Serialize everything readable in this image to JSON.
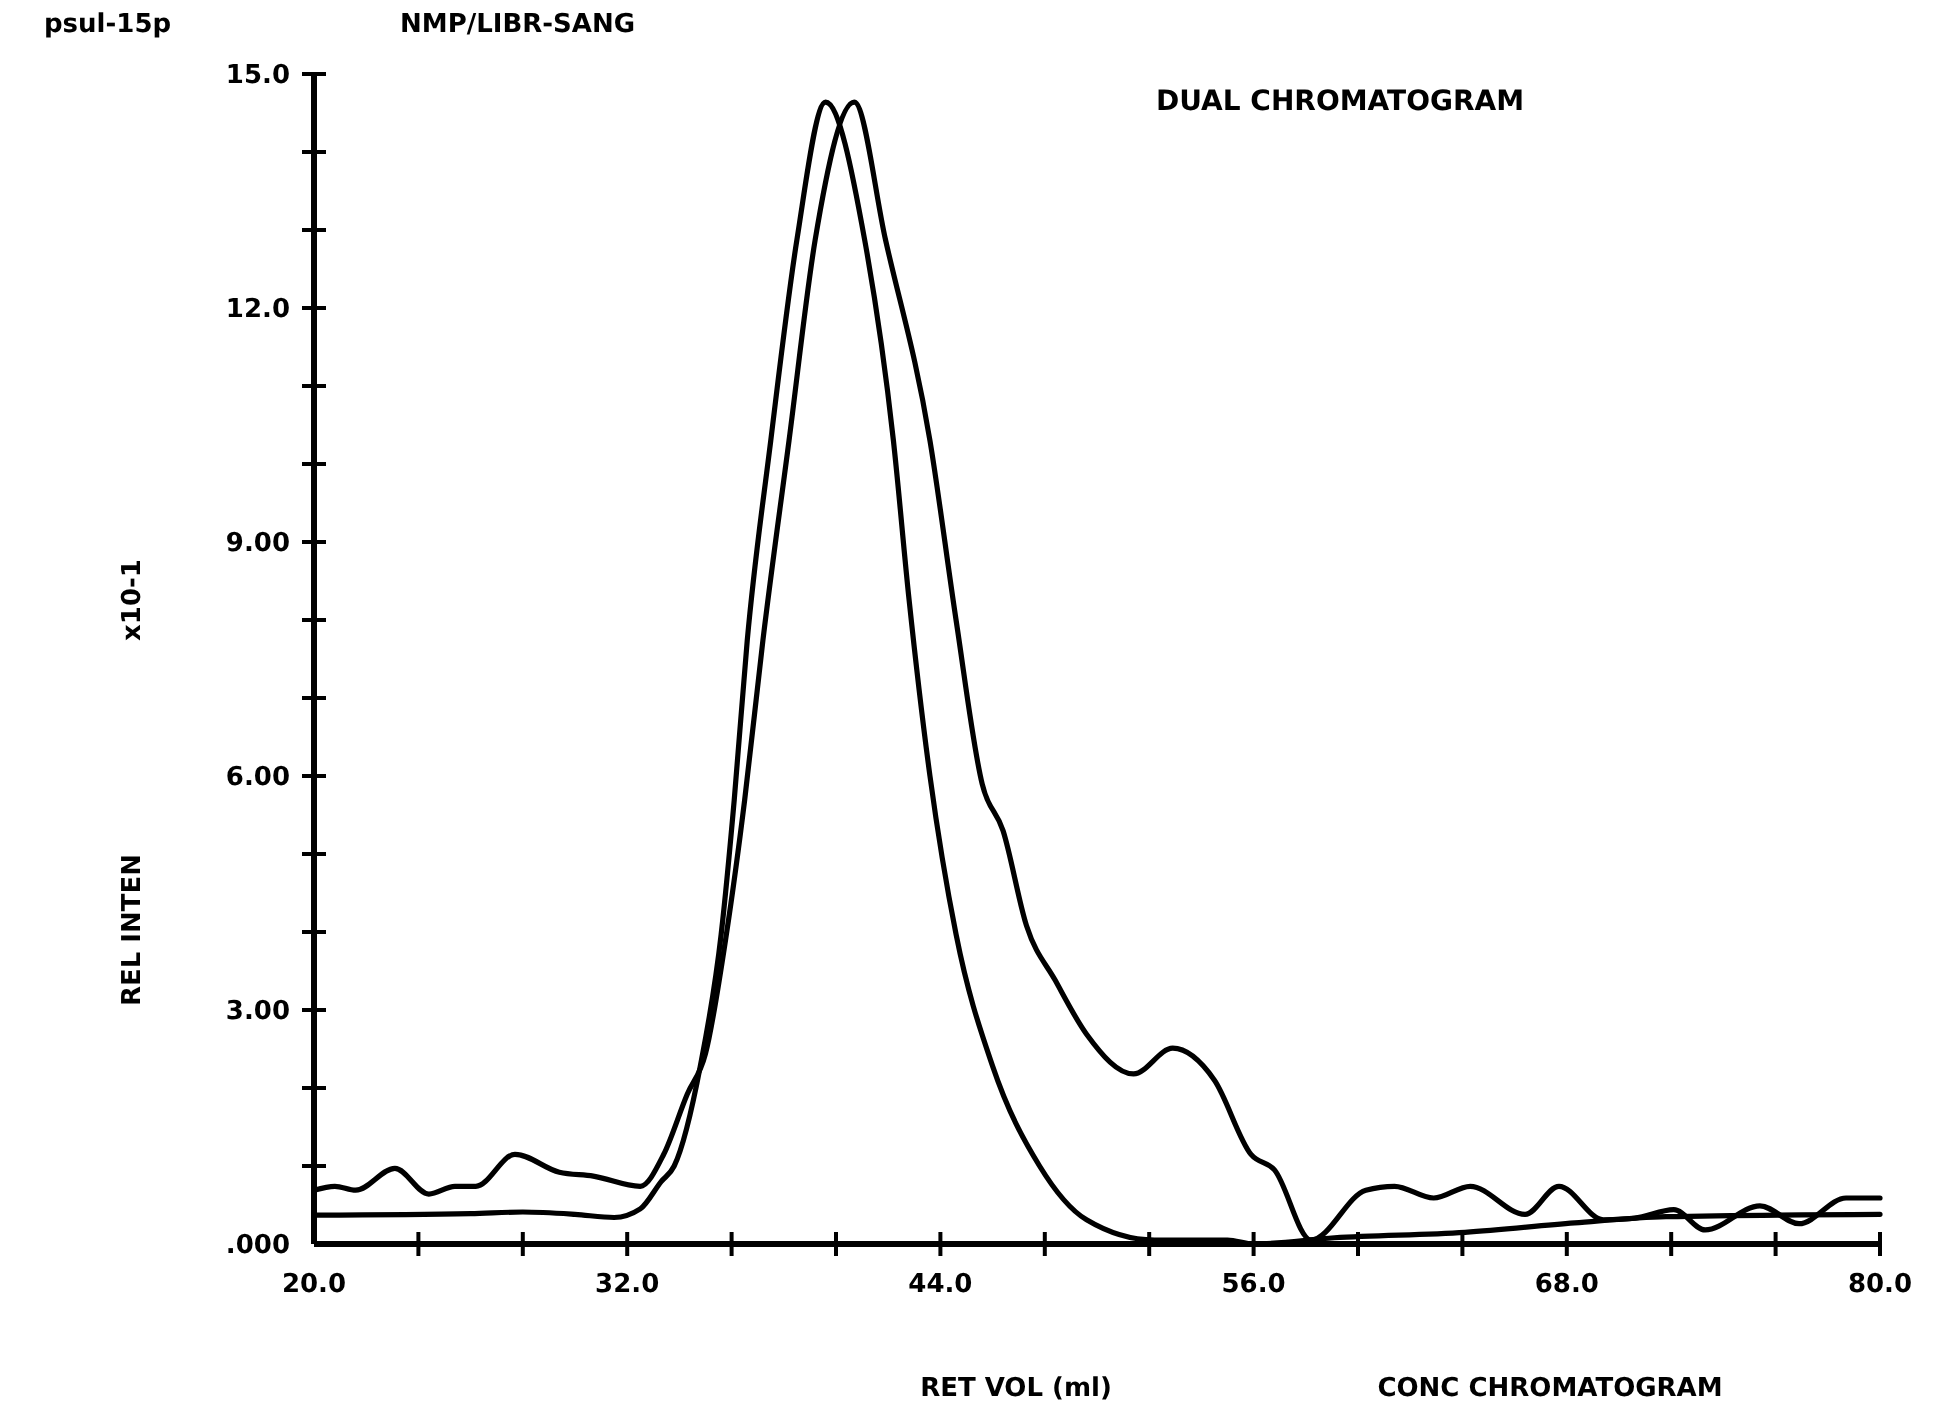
{
  "chart_data": {
    "type": "line",
    "title": "DUAL CHROMATOGRAM",
    "subtitle": "NMP/LIBR-SANG",
    "xlabel": "RET VOL (ml)",
    "ylabel": "REL INTEN",
    "annotations": [
      "psul-15p",
      "x10-1",
      "CONC CHROMATOGRAM"
    ],
    "xlim": [
      20,
      80
    ],
    "ylim": [
      0,
      15
    ],
    "xticks": [
      {
        "value": 20,
        "label": "20.0"
      },
      {
        "value": 24,
        "label": null
      },
      {
        "value": 28,
        "label": null
      },
      {
        "value": 32,
        "label": "32.0"
      },
      {
        "value": 36,
        "label": null
      },
      {
        "value": 40,
        "label": null
      },
      {
        "value": 44,
        "label": "44.0"
      },
      {
        "value": 48,
        "label": null
      },
      {
        "value": 52,
        "label": null
      },
      {
        "value": 56,
        "label": "56.0"
      },
      {
        "value": 60,
        "label": null
      },
      {
        "value": 64,
        "label": null
      },
      {
        "value": 68,
        "label": "68.0"
      },
      {
        "value": 72,
        "label": null
      },
      {
        "value": 76,
        "label": null
      },
      {
        "value": 80,
        "label": "80.0"
      }
    ],
    "yticks": [
      {
        "value": 0,
        "label": ".000"
      },
      {
        "value": 1,
        "label": null
      },
      {
        "value": 2,
        "label": null
      },
      {
        "value": 3,
        "label": "3.00"
      },
      {
        "value": 4,
        "label": null
      },
      {
        "value": 5,
        "label": null
      },
      {
        "value": 6,
        "label": "6.00"
      },
      {
        "value": 7,
        "label": null
      },
      {
        "value": 8,
        "label": null
      },
      {
        "value": 9,
        "label": "9.00"
      },
      {
        "value": 10,
        "label": null
      },
      {
        "value": 11,
        "label": null
      },
      {
        "value": 12,
        "label": "12.0"
      },
      {
        "value": 13,
        "label": null
      },
      {
        "value": 14,
        "label": null
      },
      {
        "value": 15,
        "label": "15.0"
      }
    ],
    "grid": false,
    "marker": "none",
    "line_style": "solid",
    "series": [
      {
        "color": "#000000",
        "x": [
          20,
          26,
          28,
          30,
          31.5,
          32.5,
          33.3,
          33.8,
          34.8,
          35.6,
          36.1,
          36.6,
          37.5,
          38.5,
          39.6,
          41.1,
          42.2,
          42.8,
          43.6,
          44.6,
          46.0,
          47.8,
          49.6,
          52.2,
          55,
          56,
          59.1,
          64.1,
          68.3,
          71.8,
          80
        ],
        "values": [
          0.37,
          0.39,
          0.41,
          0.38,
          0.34,
          0.45,
          0.8,
          1.0,
          2.28,
          3.97,
          5.69,
          7.74,
          10.3,
          12.87,
          14.64,
          12.87,
          10.3,
          8.26,
          6.0,
          3.97,
          2.28,
          1.0,
          0.31,
          0.05,
          0.05,
          0.0,
          0.08,
          0.15,
          0.27,
          0.35,
          0.38
        ]
      },
      {
        "color": "#000000",
        "x": [
          20,
          20.8,
          21.6,
          23.1,
          24.4,
          25.4,
          26.2,
          27.7,
          29.4,
          30.7,
          32.5,
          33.4,
          34.3,
          35.0,
          35.8,
          36.5,
          37.2,
          38.2,
          39.2,
          40.7,
          41.9,
          43.6,
          44.6,
          45.6,
          46.4,
          47.3,
          48.4,
          49.6,
          51.4,
          52.9,
          54.5,
          55.9,
          56.8,
          58.2,
          60.3,
          61.4,
          62.9,
          64.3,
          66.4,
          67.7,
          69.4,
          70.6,
          72.1,
          73.3,
          75.4,
          76.9,
          78.7,
          80
        ],
        "values": [
          0.69,
          0.74,
          0.69,
          0.97,
          0.64,
          0.74,
          0.74,
          1.15,
          0.92,
          0.87,
          0.74,
          1.15,
          1.92,
          2.44,
          3.97,
          5.69,
          7.74,
          10.3,
          12.87,
          14.64,
          12.87,
          10.3,
          8.0,
          5.9,
          5.3,
          4.08,
          3.38,
          2.69,
          2.18,
          2.51,
          2.1,
          1.15,
          0.95,
          0.05,
          0.69,
          0.74,
          0.59,
          0.74,
          0.38,
          0.74,
          0.31,
          0.33,
          0.44,
          0.18,
          0.49,
          0.26,
          0.59,
          0.59
        ]
      }
    ]
  }
}
